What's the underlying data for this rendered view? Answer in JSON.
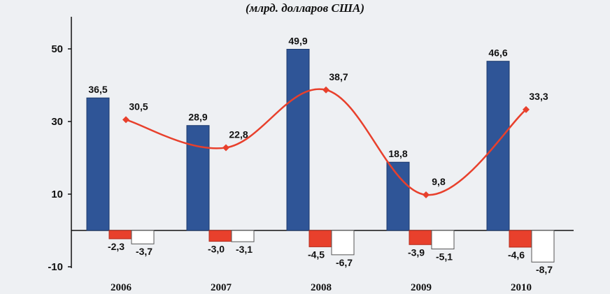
{
  "chart_data": {
    "type": "bar",
    "subtitle": "(млрд. долларов США)",
    "categories": [
      "2006",
      "2007",
      "2008",
      "2009",
      "2010"
    ],
    "ylim": [
      -10,
      60
    ],
    "yticks": [
      -10,
      10,
      30,
      50
    ],
    "ytick_labels": [
      "-10",
      "10",
      "30",
      "50"
    ],
    "series": [
      {
        "kind": "bar",
        "color": "#2f5597",
        "values": [
          36.5,
          28.9,
          49.9,
          18.8,
          46.6
        ],
        "labels": [
          "36,5",
          "28,9",
          "49,9",
          "18,8",
          "46,6"
        ]
      },
      {
        "kind": "bar",
        "color": "#e8402c",
        "values": [
          -2.3,
          -3.0,
          -4.5,
          -3.9,
          -4.6
        ],
        "labels": [
          "-2,3",
          "-3,0",
          "-4,5",
          "-3,9",
          "-4,6"
        ]
      },
      {
        "kind": "bar",
        "color": "#ffffff",
        "values": [
          -3.7,
          -3.1,
          -6.7,
          -5.1,
          -8.7
        ],
        "labels": [
          "-3,7",
          "-3,1",
          "-6,7",
          "-5,1",
          "-8,7"
        ]
      },
      {
        "kind": "line",
        "color": "#e8402c",
        "values": [
          30.5,
          22.8,
          38.7,
          9.8,
          33.3
        ],
        "labels": [
          "30,5",
          "22,8",
          "38,7",
          "9,8",
          "33,3"
        ]
      }
    ],
    "legend": "none",
    "grid": false
  }
}
